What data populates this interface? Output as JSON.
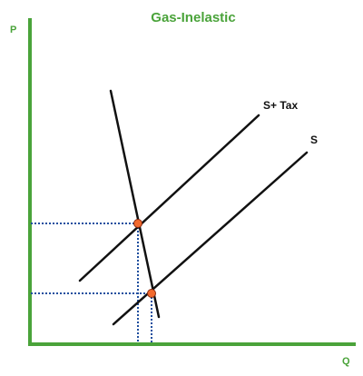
{
  "title": "Gas-Inelastic",
  "axes": {
    "y_label": "P",
    "x_label": "Q"
  },
  "curves": {
    "supply_tax_label": "S+ Tax",
    "supply_label": "S"
  },
  "colors": {
    "accent": "#4aa33a",
    "curve": "#111111",
    "guide": "#1f4e9e",
    "point_fill": "#f26a2e",
    "point_stroke": "#8a2a10"
  }
}
